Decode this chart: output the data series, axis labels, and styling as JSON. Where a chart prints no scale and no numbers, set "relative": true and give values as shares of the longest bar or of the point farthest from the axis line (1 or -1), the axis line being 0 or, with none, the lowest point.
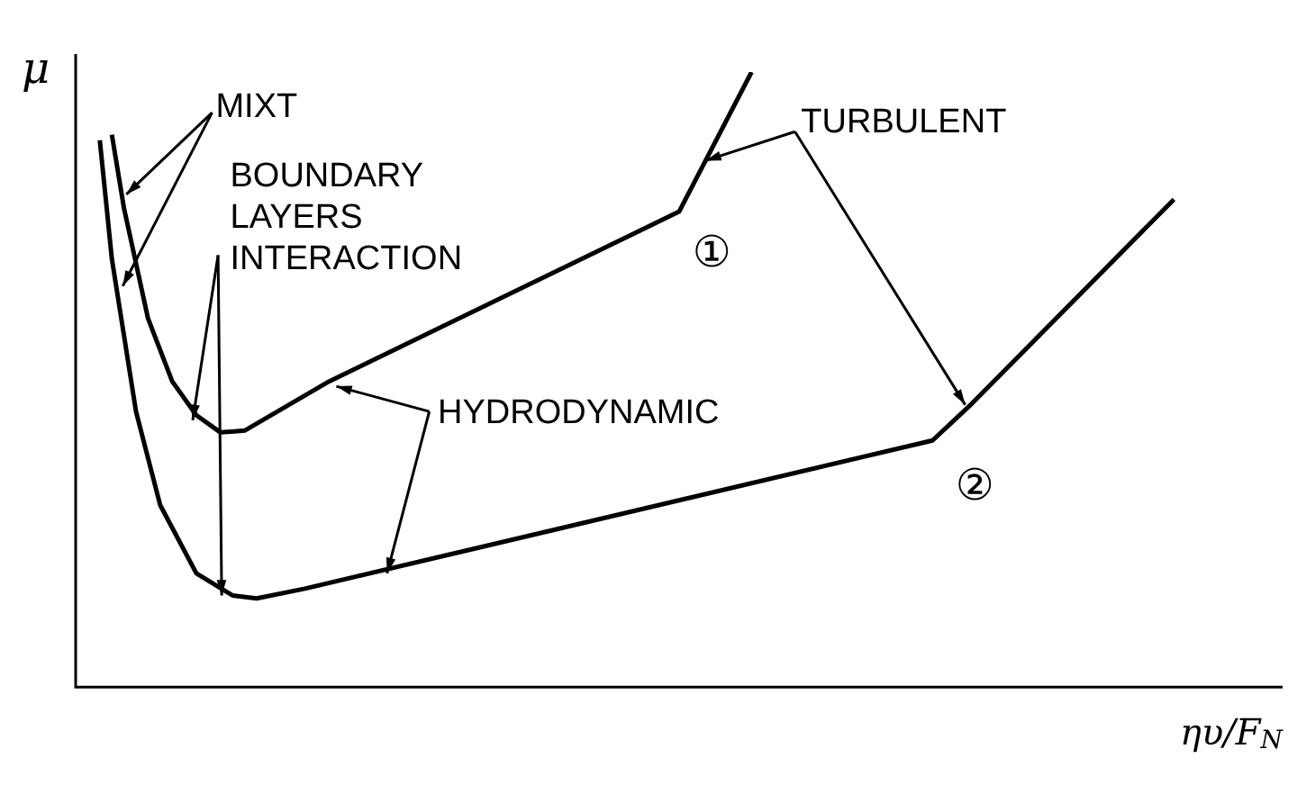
{
  "chart_data": {
    "type": "line",
    "relative": true,
    "xlabel": "ηυ/F$_{N}$",
    "ylabel": "μ",
    "grid": false,
    "legend": false,
    "marker": "none",
    "line_style": "solid",
    "categories": [
      null,
      null,
      null,
      null,
      null,
      null,
      null,
      null,
      null,
      null,
      null,
      null,
      null,
      null,
      null,
      null,
      null,
      null,
      null,
      null,
      null,
      null,
      null,
      null,
      null,
      null,
      null,
      null,
      null,
      null,
      null,
      null,
      null,
      null,
      null,
      null,
      null,
      null,
      null,
      null,
      null,
      null,
      null,
      null,
      null,
      null,
      null,
      null,
      null,
      null,
      null,
      null,
      null,
      null,
      null,
      null,
      null,
      null,
      null,
      null,
      null,
      null,
      null,
      null,
      null,
      null,
      null,
      null,
      null,
      null,
      null,
      null,
      null,
      null,
      null,
      null,
      null,
      null,
      null,
      null,
      null,
      null,
      null,
      null,
      null,
      null,
      null,
      null,
      null,
      null,
      null,
      null,
      null,
      null,
      null,
      null,
      null,
      null,
      null,
      null,
      null
    ],
    "series": [
      {
        "name": "①",
        "color": "#000000",
        "values": [
          null,
          null,
          null,
          0.898,
          0.779,
          null,
          0.599,
          null,
          0.497,
          null,
          0.442,
          null,
          0.414,
          null,
          0.417,
          null,
          null,
          null,
          null,
          null,
          null,
          0.497,
          null,
          null,
          null,
          null,
          null,
          null,
          null,
          null,
          null,
          null,
          null,
          null,
          null,
          null,
          null,
          null,
          null,
          null,
          null,
          null,
          null,
          null,
          null,
          null,
          null,
          null,
          null,
          null,
          0.773,
          null,
          null,
          null,
          null,
          null,
          1.0,
          null,
          null,
          null,
          null,
          null,
          null,
          null,
          null,
          null,
          null,
          null,
          null,
          null,
          null,
          null,
          null,
          null,
          null,
          null,
          null,
          null,
          null,
          null,
          null,
          null,
          null,
          null,
          null,
          null,
          null,
          null,
          null,
          null,
          null,
          null,
          null,
          null,
          null,
          null,
          null,
          null,
          null,
          null,
          null
        ]
      },
      {
        "name": "②",
        "color": "#000000",
        "values": [
          null,
          null,
          0.889,
          0.696,
          null,
          0.448,
          null,
          0.296,
          null,
          null,
          0.185,
          null,
          null,
          0.149,
          null,
          0.144,
          null,
          null,
          null,
          0.16,
          null,
          null,
          null,
          null,
          null,
          null,
          null,
          null,
          null,
          null,
          null,
          null,
          null,
          null,
          null,
          null,
          null,
          null,
          null,
          null,
          null,
          null,
          null,
          null,
          null,
          null,
          null,
          null,
          null,
          null,
          null,
          null,
          null,
          null,
          null,
          null,
          null,
          null,
          null,
          null,
          null,
          null,
          null,
          null,
          null,
          null,
          null,
          null,
          null,
          null,
          null,
          0.401,
          null,
          null,
          0.456,
          null,
          null,
          null,
          null,
          null,
          null,
          null,
          null,
          null,
          null,
          null,
          null,
          null,
          null,
          null,
          null,
          0.793,
          null,
          null,
          null,
          null,
          null,
          null,
          null,
          null,
          null
        ]
      }
    ],
    "annotations": [
      "MIXT",
      "BOUNDARY LAYERS INTERACTION",
      "HYDRODYNAMIC",
      "TURBULENT"
    ]
  }
}
